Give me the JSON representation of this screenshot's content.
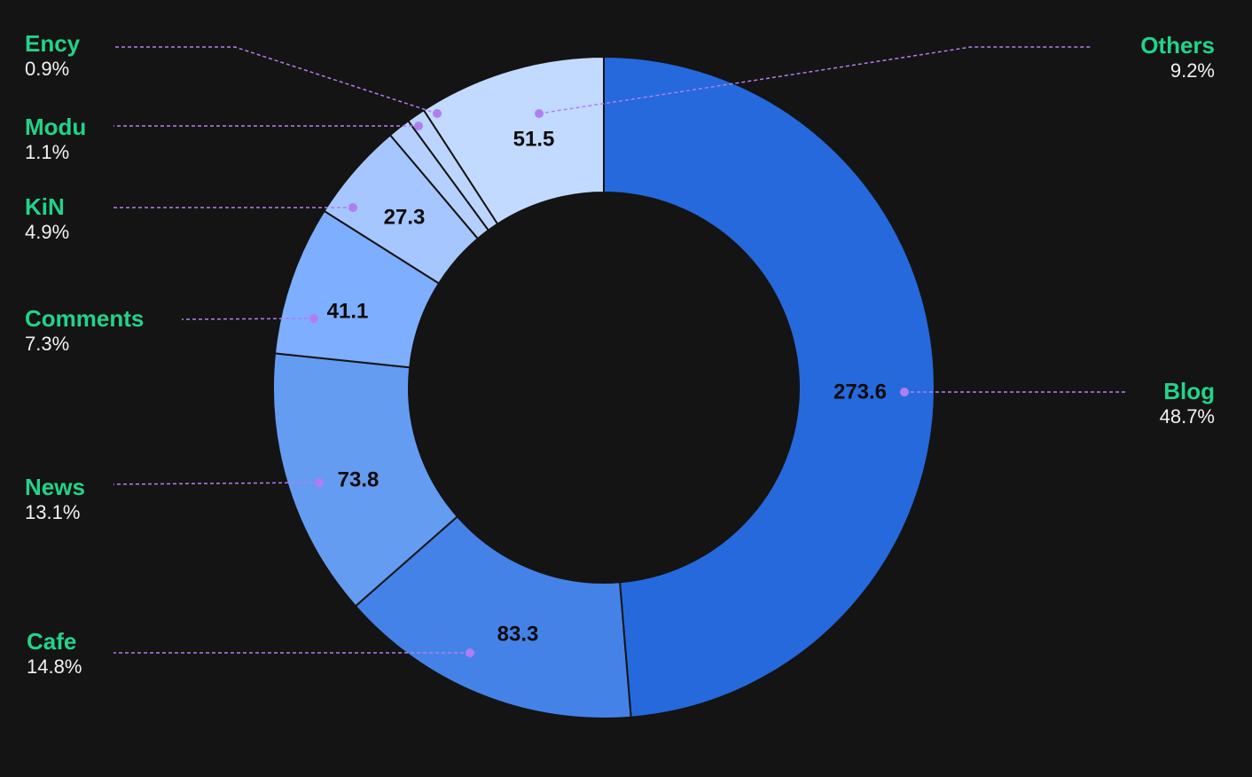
{
  "chart_data": {
    "type": "pie",
    "variant": "donut",
    "categories": [
      "Blog",
      "Cafe",
      "News",
      "Comments",
      "KiN",
      "Modu",
      "Ency",
      "Others"
    ],
    "values": [
      273.6,
      83.3,
      73.8,
      41.1,
      27.3,
      6.2,
      5.1,
      51.5
    ],
    "value_labels": [
      "273.6",
      "83.3",
      "73.8",
      "41.1",
      "27.3",
      "",
      "",
      "51.5"
    ],
    "percent_labels": [
      "48.7%",
      "14.8%",
      "13.1%",
      "7.3%",
      "4.9%",
      "1.1%",
      "0.9%",
      "9.2%"
    ],
    "colors": [
      "#2569dc",
      "#4582e8",
      "#649cf2",
      "#7daeff",
      "#a5c6ff",
      "#b5d0ff",
      "#bcd5ff",
      "#c2daff"
    ],
    "legend_placement": "around",
    "leader_line_color": "#b07ef0",
    "background": "#141414"
  }
}
